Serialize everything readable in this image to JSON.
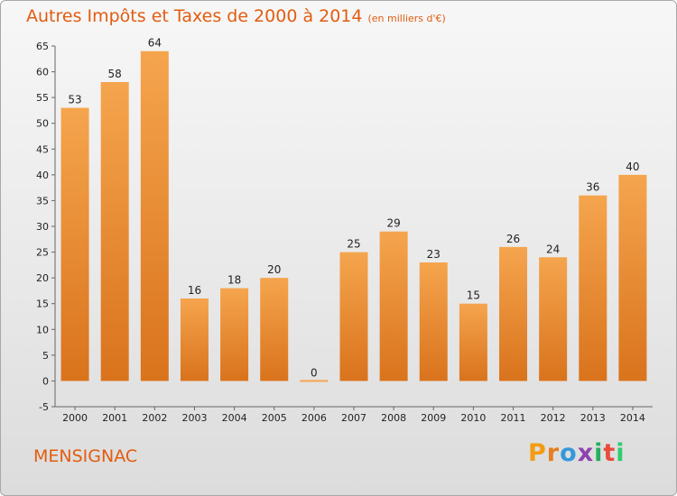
{
  "chart_data": {
    "type": "bar",
    "title": "Autres Impôts et Taxes de 2000 à 2014",
    "subtitle": "(en milliers d'€)",
    "categories": [
      "2000",
      "2001",
      "2002",
      "2003",
      "2004",
      "2005",
      "2006",
      "2007",
      "2008",
      "2009",
      "2010",
      "2011",
      "2012",
      "2013",
      "2014"
    ],
    "values": [
      53,
      58,
      64,
      16,
      18,
      20,
      0,
      25,
      29,
      23,
      15,
      26,
      24,
      36,
      40
    ],
    "data_labels": [
      "53",
      "58",
      "64",
      "16",
      "18",
      "20",
      "0",
      "25",
      "29",
      "23",
      "15",
      "26",
      "24",
      "36",
      "40"
    ],
    "ylim": [
      -5,
      65
    ],
    "yticks": [
      -5,
      0,
      5,
      10,
      15,
      20,
      25,
      30,
      35,
      40,
      45,
      50,
      55,
      60,
      65
    ],
    "xlabel": "",
    "ylabel": "",
    "grid": false,
    "bar_color_light": "#f5a54e",
    "bar_color_dark": "#d9731c"
  },
  "footer": {
    "town": "MENSIGNAC",
    "logo_letters": [
      "P",
      "r",
      "o",
      "x",
      "i",
      "t",
      "i"
    ],
    "logo_colors": [
      "#f39c12",
      "#e67e22",
      "#3498db",
      "#8e44ad",
      "#27ae60",
      "#e74c3c",
      "#2ecc71"
    ]
  },
  "colors": {
    "accent": "#e25c10"
  }
}
